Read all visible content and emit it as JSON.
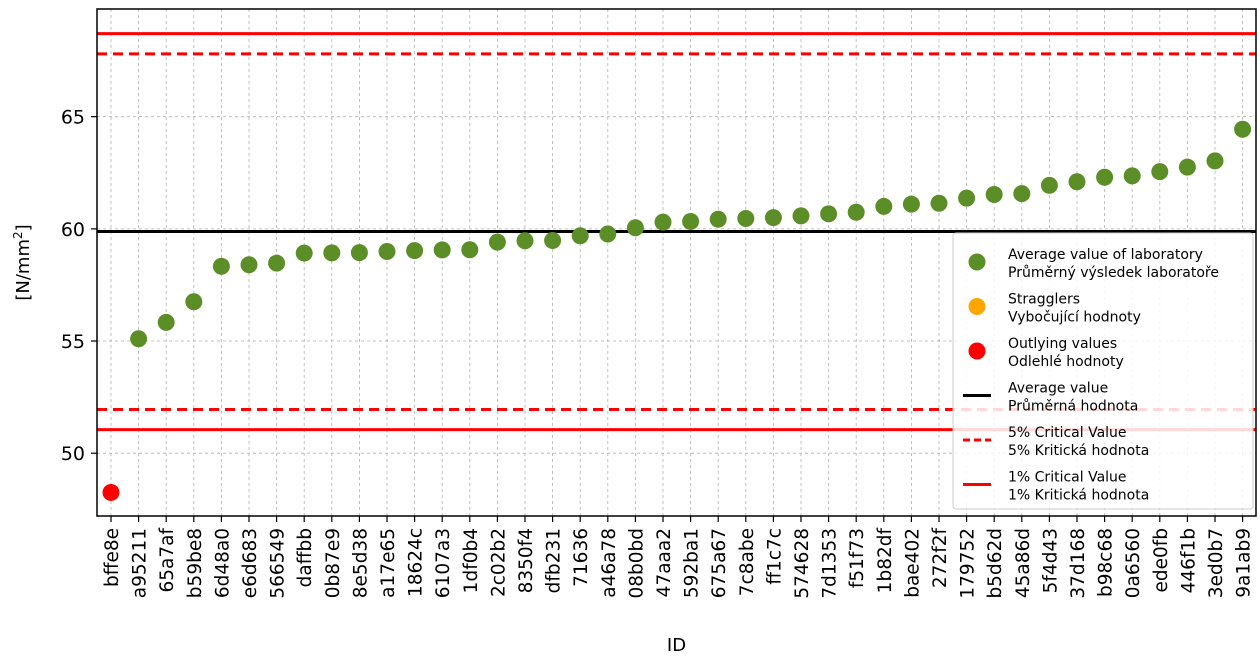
{
  "chart_data": {
    "type": "scatter",
    "xlabel": "ID",
    "ylabel": "[N/mm",
    "ylabel_sup": "2",
    "ylabel_close": "]",
    "ylim": [
      47.2,
      69.8
    ],
    "yticks": [
      50,
      55,
      60,
      65
    ],
    "grid": true,
    "legend_placement": "lower-right",
    "categories": [
      "bffe8e",
      "a95211",
      "65a7af",
      "b59be8",
      "6d48a0",
      "e6d683",
      "566549",
      "daffbb",
      "0b87e9",
      "8e5d38",
      "a17e65",
      "18624c",
      "6107a3",
      "1df0b4",
      "2c02b2",
      "8350f4",
      "dfb231",
      "71636",
      "a46a78",
      "08b0bd",
      "47aaa2",
      "592ba1",
      "675a67",
      "7c8abe",
      "ff1c7c",
      "574628",
      "7d1353",
      "f51f73",
      "1b82df",
      "bae402",
      "272f2f",
      "179752",
      "b5d62d",
      "45a86d",
      "5f4d43",
      "37d168",
      "b98c68",
      "0a6560",
      "ede0fb",
      "446f1b",
      "3ed0b7",
      "9a1ab9"
    ],
    "values": [
      48.25,
      55.1,
      55.83,
      56.75,
      58.33,
      58.4,
      58.47,
      58.92,
      58.93,
      58.94,
      58.99,
      59.03,
      59.06,
      59.07,
      59.41,
      59.47,
      59.48,
      59.69,
      59.77,
      60.05,
      60.3,
      60.33,
      60.43,
      60.46,
      60.5,
      60.58,
      60.67,
      60.74,
      61.0,
      61.1,
      61.14,
      61.37,
      61.53,
      61.57,
      61.94,
      62.1,
      62.3,
      62.36,
      62.55,
      62.75,
      63.03,
      64.44
    ],
    "point_status": [
      "outlier",
      "average",
      "average",
      "average",
      "average",
      "average",
      "average",
      "average",
      "average",
      "average",
      "average",
      "average",
      "average",
      "average",
      "average",
      "average",
      "average",
      "average",
      "average",
      "average",
      "average",
      "average",
      "average",
      "average",
      "average",
      "average",
      "average",
      "average",
      "average",
      "average",
      "average",
      "average",
      "average",
      "average",
      "average",
      "average",
      "average",
      "average",
      "average",
      "average",
      "average",
      "average"
    ],
    "average_value": 59.88,
    "critical_5": {
      "lower": 51.95,
      "upper": 67.8
    },
    "critical_1": {
      "lower": 51.05,
      "upper": 68.7
    },
    "colors": {
      "average": "#5b8e27",
      "straggler": "#ffa500",
      "outlier": "#ff0000",
      "mean_line": "#000000",
      "critical": "#ff0000",
      "grid": "#b0b0b0"
    },
    "legend": [
      {
        "key": "average",
        "line1": "Average value of laboratory",
        "line2": "Průměrný výsledek laboratoře"
      },
      {
        "key": "straggler",
        "line1": "Stragglers",
        "line2": "Vybočující hodnoty"
      },
      {
        "key": "outlier",
        "line1": "Outlying values",
        "line2": "Odlehlé hodnoty"
      },
      {
        "key": "mean_line",
        "line1": "Average value",
        "line2": "Průměrná hodnota"
      },
      {
        "key": "critical_5",
        "line1": "5% Critical Value",
        "line2": "5% Kritická hodnota"
      },
      {
        "key": "critical_1",
        "line1": "1% Critical Value",
        "line2": "1% Kritická hodnota"
      }
    ]
  }
}
